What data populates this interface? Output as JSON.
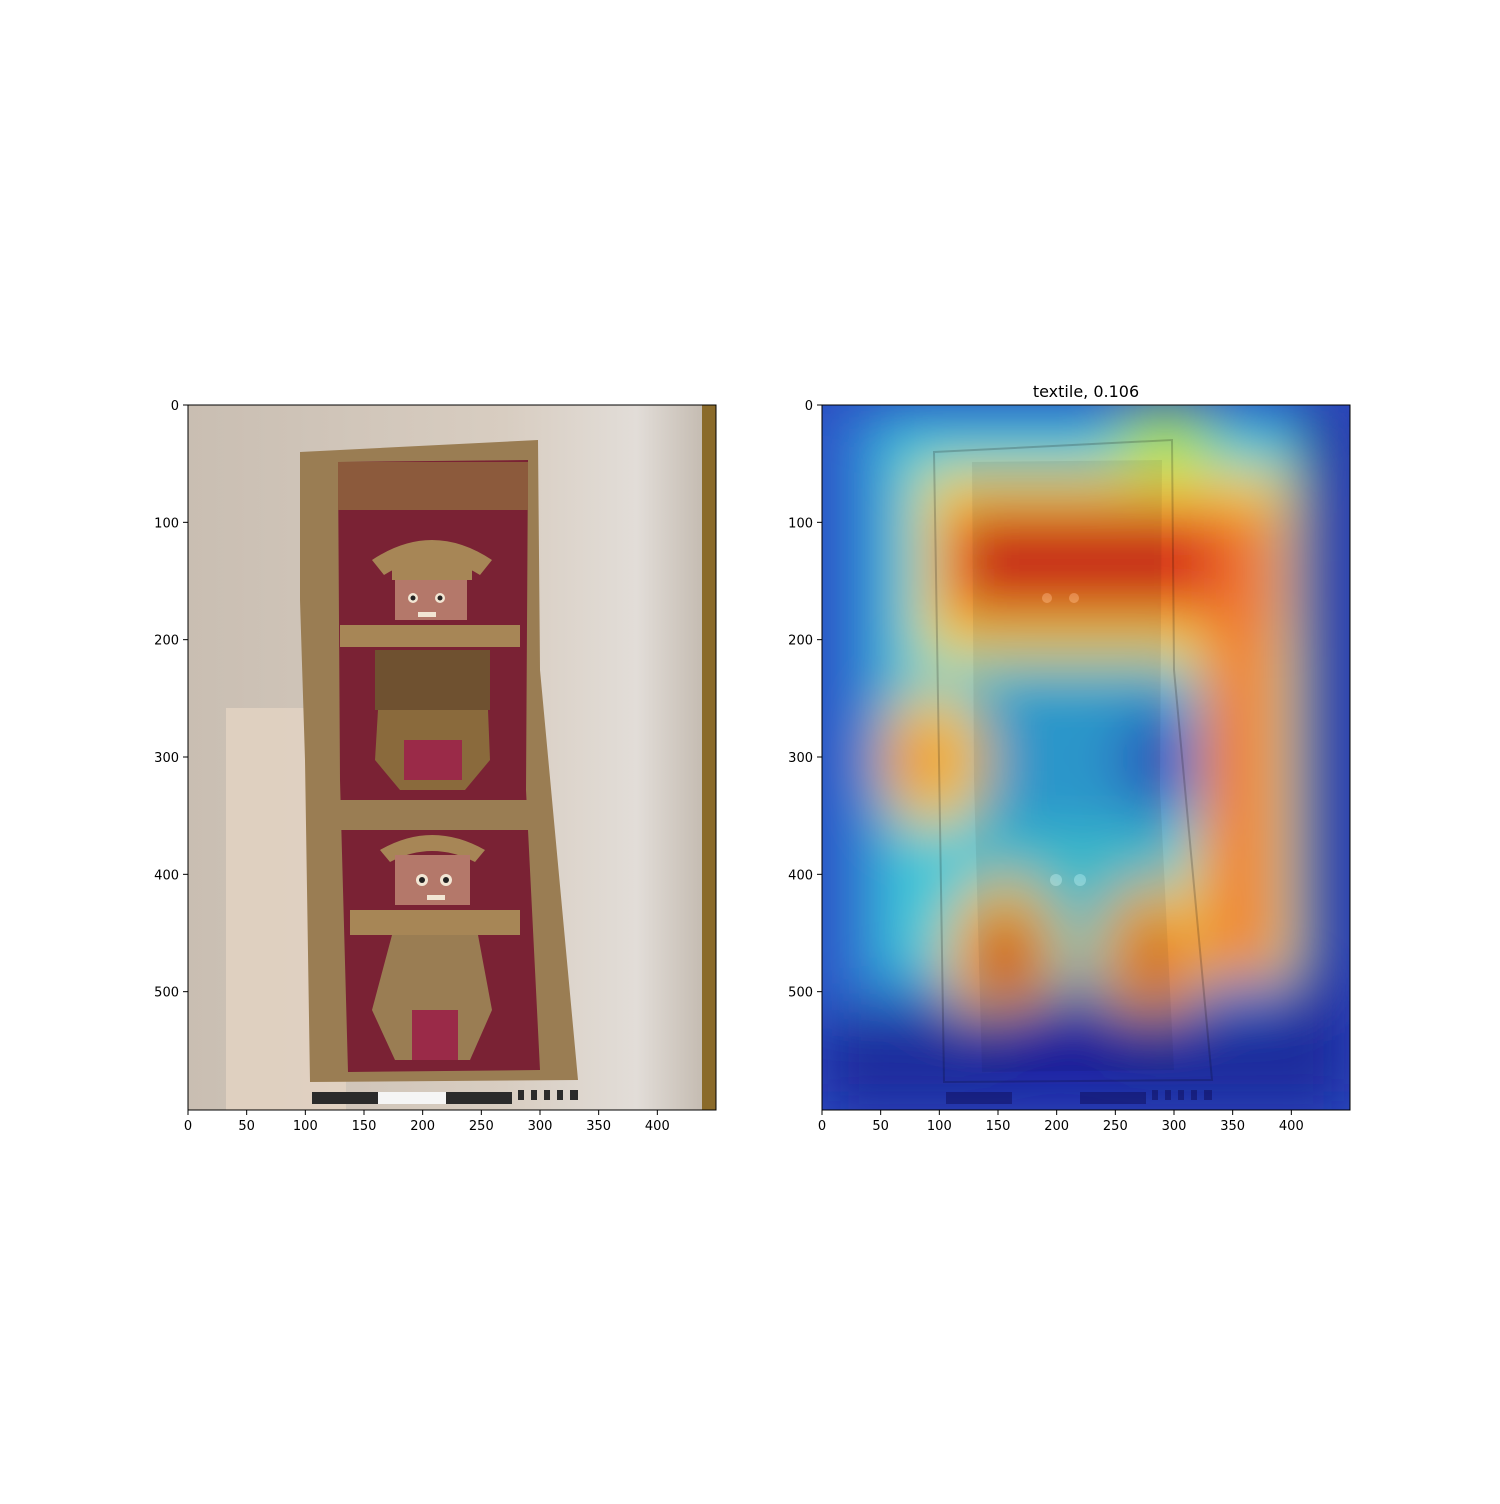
{
  "figure": {
    "left_panel": {
      "title": "",
      "xticks": [
        "0",
        "50",
        "100",
        "150",
        "200",
        "250",
        "300",
        "350",
        "400"
      ],
      "yticks": [
        "0",
        "100",
        "200",
        "300",
        "400",
        "500"
      ]
    },
    "right_panel": {
      "title": "textile, 0.106",
      "xticks": [
        "0",
        "50",
        "100",
        "150",
        "200",
        "250",
        "300",
        "350",
        "400"
      ],
      "yticks": [
        "0",
        "100",
        "200",
        "300",
        "400",
        "500"
      ],
      "overlay": "jet-colormap-heatmap"
    },
    "colors": {
      "wall": "#cfc3b6",
      "textile_border": "#9a7d53",
      "textile_field": "#7a2234",
      "heat_hot": "#d40d0d",
      "heat_cold": "#1d2c9c"
    }
  }
}
